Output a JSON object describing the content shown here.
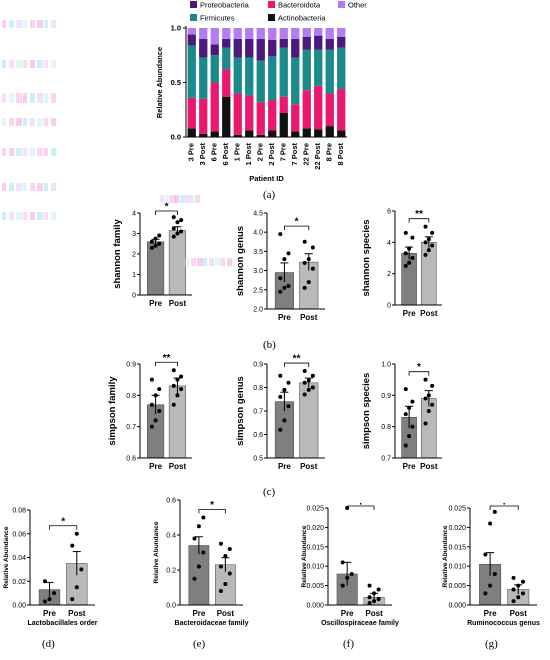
{
  "panel_labels": [
    "(a)",
    "(b)",
    "(c)",
    "(d)",
    "(e)",
    "(f)",
    "(g)"
  ],
  "colors": {
    "proteobacteria": "#4b1a7a",
    "bacteroidota": "#e8196e",
    "other": "#b47cf0",
    "firmicutes": "#1a8a8a",
    "actinobacteria": "#111111",
    "bar_pre": "#7f7f7f",
    "bar_post": "#b9b9b9"
  },
  "chart_data": [
    {
      "type": "bar",
      "stacked": true,
      "xlabel": "Patient ID",
      "ylabel": "Relative Abundance",
      "ylim": [
        0,
        1
      ],
      "yticks": [
        "0.0",
        "0.5",
        "1.0"
      ],
      "legend_position": "top",
      "categories": [
        "3 Pre",
        "3 Post",
        "6 Pre",
        "6 Post",
        "1 Pre",
        "1 Post",
        "2 Pre",
        "2 Post",
        "7 Pre",
        "7 Post",
        "22 Pre",
        "22 Post",
        "8 Pre",
        "8 Post"
      ],
      "series": [
        {
          "name": "Actinobacteria",
          "values": [
            0.08,
            0.03,
            0.05,
            0.37,
            0.02,
            0.06,
            0.02,
            0.06,
            0.22,
            0.05,
            0.08,
            0.07,
            0.1,
            0.06
          ]
        },
        {
          "name": "Bacteroidota",
          "values": [
            0.28,
            0.32,
            0.45,
            0.25,
            0.38,
            0.32,
            0.3,
            0.28,
            0.15,
            0.25,
            0.35,
            0.4,
            0.3,
            0.38
          ]
        },
        {
          "name": "Firmicutes",
          "values": [
            0.48,
            0.38,
            0.25,
            0.2,
            0.33,
            0.35,
            0.38,
            0.4,
            0.45,
            0.43,
            0.37,
            0.33,
            0.4,
            0.38
          ]
        },
        {
          "name": "Proteobacteria",
          "values": [
            0.1,
            0.17,
            0.1,
            0.08,
            0.17,
            0.17,
            0.2,
            0.15,
            0.08,
            0.17,
            0.12,
            0.13,
            0.1,
            0.1
          ]
        },
        {
          "name": "Other",
          "values": [
            0.06,
            0.1,
            0.15,
            0.1,
            0.1,
            0.1,
            0.1,
            0.11,
            0.1,
            0.1,
            0.08,
            0.07,
            0.1,
            0.08
          ]
        }
      ]
    },
    {
      "type": "bar",
      "categories": [
        "Pre",
        "Post"
      ],
      "values": [
        2.6,
        3.15
      ],
      "errors": [
        0.12,
        0.18
      ],
      "ylabel": "shannon family",
      "ylim": [
        0,
        4
      ],
      "yticks": [
        "0",
        "1",
        "2",
        "3",
        "4"
      ],
      "significance": "*",
      "points": [
        [
          2.3,
          2.4,
          2.5,
          2.6,
          2.75,
          2.9
        ],
        [
          2.85,
          3.0,
          3.1,
          3.25,
          3.55,
          3.65,
          3.8
        ]
      ]
    },
    {
      "type": "bar",
      "categories": [
        "Pre",
        "Post"
      ],
      "values": [
        2.95,
        3.22
      ],
      "errors": [
        0.25,
        0.22
      ],
      "ylabel": "shannon genus",
      "ylim": [
        2.0,
        4.5
      ],
      "yticks": [
        "2.0",
        "2.5",
        "3.0",
        "3.5",
        "4.0",
        "4.5"
      ],
      "significance": "*",
      "points": [
        [
          2.45,
          2.55,
          2.6,
          2.8,
          3.3,
          3.45,
          3.95
        ],
        [
          2.55,
          2.7,
          3.05,
          3.2,
          3.3,
          3.6,
          3.75
        ]
      ]
    },
    {
      "type": "bar",
      "categories": [
        "Pre",
        "Post"
      ],
      "values": [
        3.3,
        4.0
      ],
      "errors": [
        0.4,
        0.35
      ],
      "ylabel": "shannon species",
      "ylim": [
        0,
        6
      ],
      "yticks": [
        "0",
        "2",
        "4",
        "6"
      ],
      "significance": "**",
      "points": [
        [
          2.5,
          2.7,
          3.0,
          3.3,
          3.6,
          4.3,
          4.6
        ],
        [
          3.2,
          3.5,
          3.8,
          4.0,
          4.2,
          4.6,
          5.0
        ]
      ]
    },
    {
      "type": "bar",
      "categories": [
        "Pre",
        "Post"
      ],
      "values": [
        0.77,
        0.83
      ],
      "errors": [
        0.03,
        0.025
      ],
      "ylabel": "simpson family",
      "ylim": [
        0.6,
        0.9
      ],
      "yticks": [
        "0.6",
        "0.7",
        "0.8",
        "0.9"
      ],
      "significance": "**",
      "points": [
        [
          0.7,
          0.72,
          0.75,
          0.77,
          0.8,
          0.82,
          0.85
        ],
        [
          0.77,
          0.8,
          0.82,
          0.83,
          0.85,
          0.86,
          0.88
        ]
      ]
    },
    {
      "type": "bar",
      "categories": [
        "Pre",
        "Post"
      ],
      "values": [
        0.74,
        0.82
      ],
      "errors": [
        0.04,
        0.02
      ],
      "ylabel": "simpson genus",
      "ylim": [
        0.5,
        0.9
      ],
      "yticks": [
        "0.5",
        "0.6",
        "0.7",
        "0.8",
        "0.9"
      ],
      "significance": "**",
      "points": [
        [
          0.62,
          0.66,
          0.72,
          0.76,
          0.79,
          0.82,
          0.85
        ],
        [
          0.77,
          0.79,
          0.8,
          0.82,
          0.83,
          0.85,
          0.87
        ]
      ]
    },
    {
      "type": "bar",
      "categories": [
        "Pre",
        "Post"
      ],
      "values": [
        0.83,
        0.89
      ],
      "errors": [
        0.035,
        0.025
      ],
      "ylabel": "simpson species",
      "ylim": [
        0.7,
        1.0
      ],
      "yticks": [
        "0.7",
        "0.8",
        "0.9",
        "1.0"
      ],
      "significance": "*",
      "points": [
        [
          0.74,
          0.77,
          0.8,
          0.84,
          0.86,
          0.88,
          0.92
        ],
        [
          0.81,
          0.85,
          0.87,
          0.89,
          0.9,
          0.93,
          0.95
        ]
      ]
    },
    {
      "type": "bar",
      "categories": [
        "Pre",
        "Post"
      ],
      "values": [
        0.013,
        0.035
      ],
      "errors": [
        0.006,
        0.01
      ],
      "ylabel": "Relative Abundance",
      "xlabel": "Lactobacillales order",
      "ylim": [
        0,
        0.08
      ],
      "yticks": [
        "0.00",
        "0.02",
        "0.04",
        "0.06",
        "0.08"
      ],
      "significance": "*",
      "points": [
        [
          0.003,
          0.005,
          0.01,
          0.02
        ],
        [
          0.005,
          0.015,
          0.03,
          0.05,
          0.06
        ]
      ]
    },
    {
      "type": "bar",
      "categories": [
        "Pre",
        "Post"
      ],
      "values": [
        0.34,
        0.23
      ],
      "errors": [
        0.05,
        0.04
      ],
      "ylabel": "Relative Abundance",
      "xlabel": "Bacteroidaceae family",
      "ylim": [
        0,
        0.6
      ],
      "yticks": [
        "0.0",
        "0.2",
        "0.4",
        "0.6"
      ],
      "significance": "*",
      "points": [
        [
          0.15,
          0.22,
          0.3,
          0.38,
          0.45,
          0.5
        ],
        [
          0.08,
          0.12,
          0.18,
          0.22,
          0.28,
          0.32,
          0.35
        ]
      ]
    },
    {
      "type": "bar",
      "categories": [
        "Pre",
        "Post"
      ],
      "values": [
        0.008,
        0.002
      ],
      "errors": [
        0.003,
        0.001
      ],
      "ylabel": "Relative Abundance",
      "xlabel": "Oscillospiraceae family",
      "ylim": [
        0,
        0.025
      ],
      "yticks": [
        "0.000",
        "0.005",
        "0.010",
        "0.015",
        "0.020",
        "0.025"
      ],
      "significance": ".",
      "points": [
        [
          0.005,
          0.007,
          0.008,
          0.011,
          0.025
        ],
        [
          0.0005,
          0.001,
          0.0015,
          0.002,
          0.003,
          0.004,
          0.005
        ]
      ]
    },
    {
      "type": "bar",
      "categories": [
        "Pre",
        "Post"
      ],
      "values": [
        0.0105,
        0.004
      ],
      "errors": [
        0.003,
        0.0012
      ],
      "ylabel": "Relative Abundance",
      "xlabel": "Ruminococcus genus",
      "ylim": [
        0,
        0.025
      ],
      "yticks": [
        "0.000",
        "0.005",
        "0.010",
        "0.015",
        "0.020",
        "0.025"
      ],
      "significance": ".",
      "points": [
        [
          0.003,
          0.005,
          0.008,
          0.013,
          0.021,
          0.024
        ],
        [
          0.001,
          0.002,
          0.003,
          0.004,
          0.005,
          0.006,
          0.007
        ]
      ]
    }
  ]
}
